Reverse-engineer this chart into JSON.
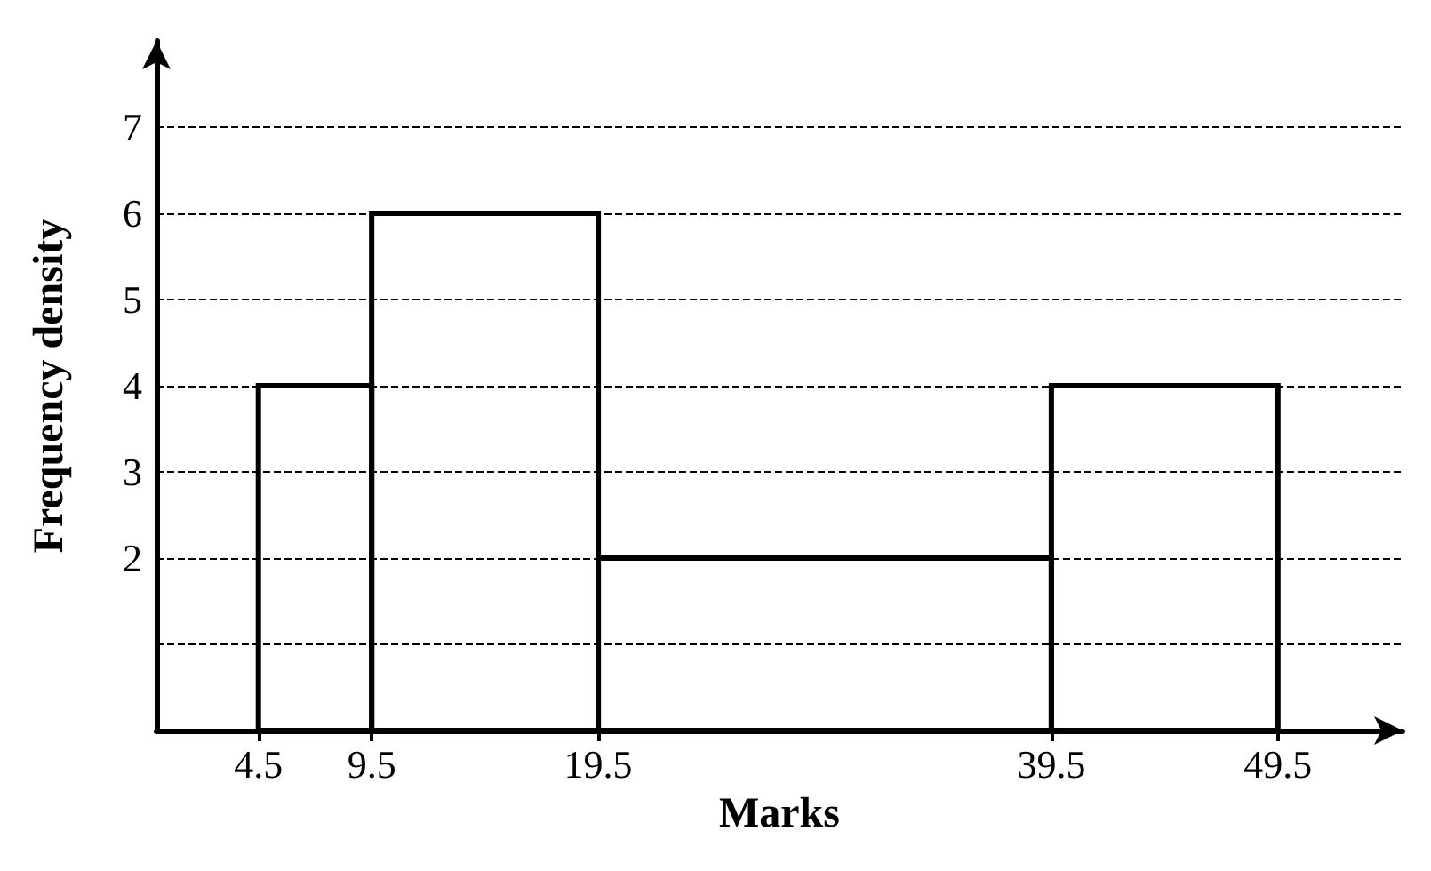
{
  "chart_data": {
    "type": "histogram",
    "xlabel": "Marks",
    "ylabel": "Frequency density",
    "bins": [
      4.5,
      9.5,
      19.5,
      39.5,
      49.5
    ],
    "values": [
      4,
      6,
      2,
      4
    ],
    "color": "#000000",
    "xlim": [
      0,
      55
    ],
    "xticks": [
      4.5,
      9.5,
      19.5,
      39.5,
      49.5
    ],
    "ylim": [
      0,
      8
    ],
    "yticks": [
      {
        "value": 1,
        "label": null
      },
      2,
      3,
      4,
      5,
      6,
      7
    ],
    "grid": "y"
  }
}
